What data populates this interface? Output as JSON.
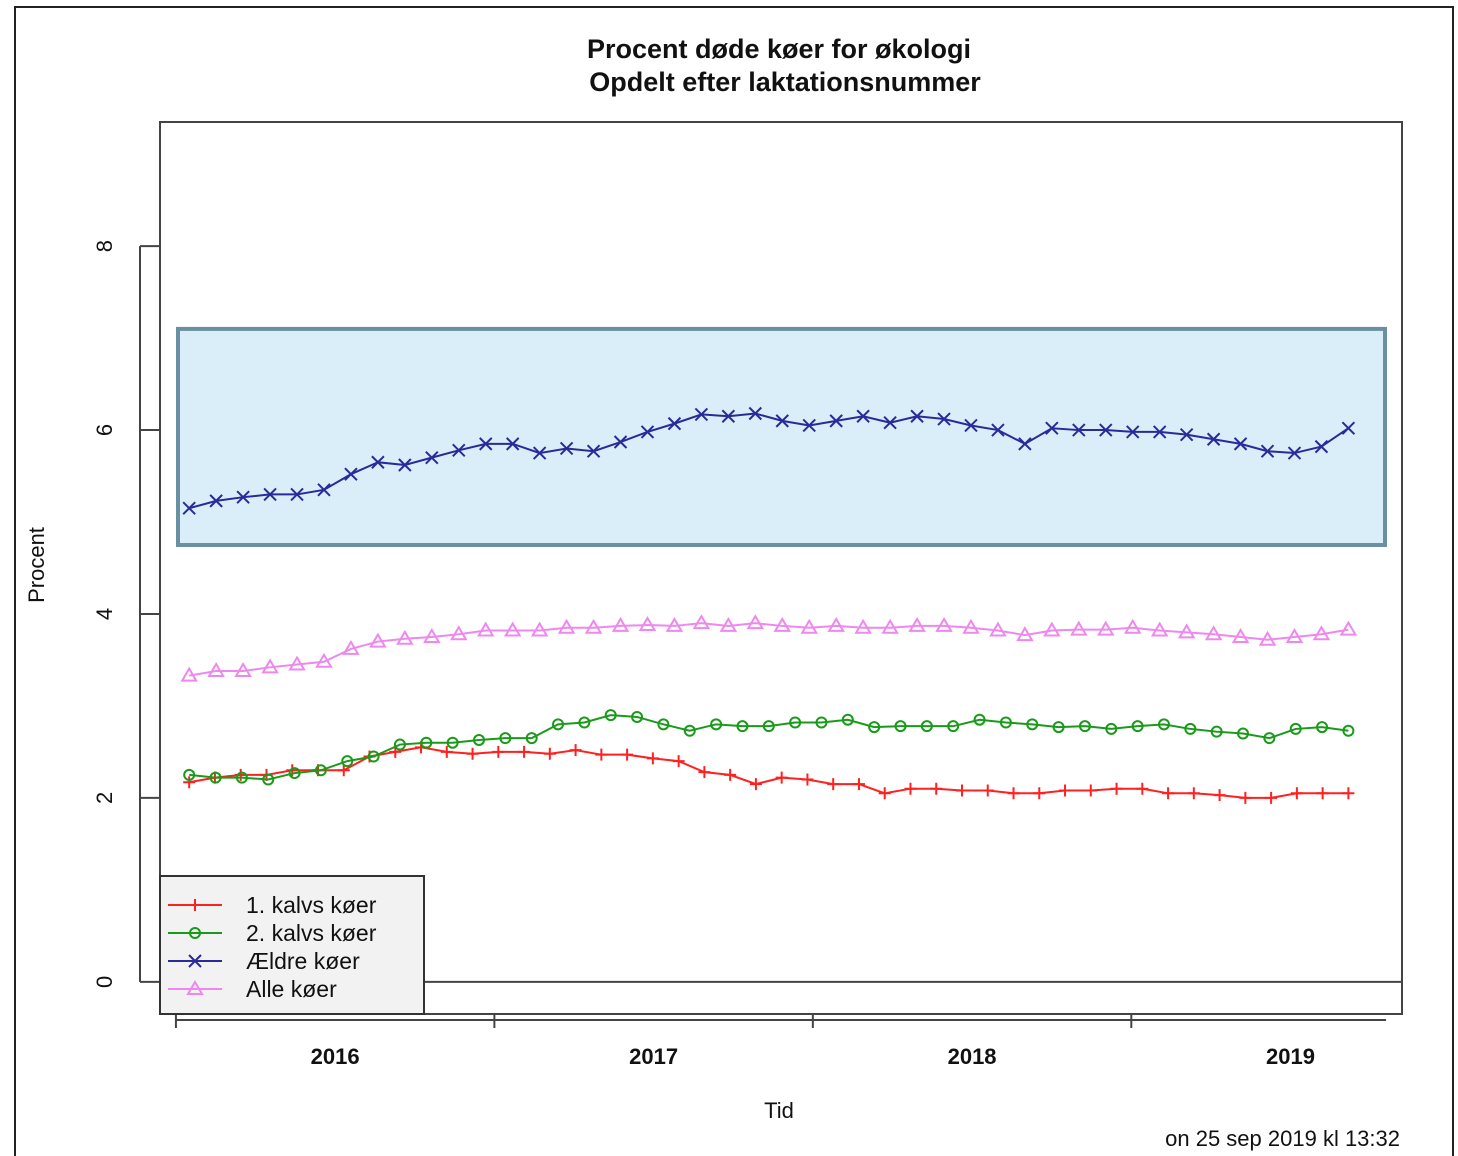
{
  "chart_data": {
    "type": "line",
    "title": "Procent døde køer for økologi",
    "subtitle": "Opdelt efter laktationsnummer",
    "xlabel": "Tid",
    "ylabel": "Procent",
    "x_ticks": [
      "2016",
      "2017",
      "2018",
      "2019"
    ],
    "y_ticks": [
      "0",
      "2",
      "4",
      "6",
      "8"
    ],
    "ylim": [
      -0.35,
      9.35
    ],
    "xlim": [
      2015.45,
      2019.35
    ],
    "x_start": "2015-07",
    "x_end": "2019-08",
    "grid": false,
    "legend_position": "bottom-left",
    "footnote": "on 25 sep 2019 kl 13:32",
    "highlight_box": {
      "y_range": [
        4.75,
        7.1
      ],
      "color": "#d9eef8",
      "border": "#6a8fa0"
    },
    "series": [
      {
        "name": "1. kalvs køer",
        "color": "#ff2020",
        "marker": "plus",
        "values": [
          2.17,
          2.22,
          2.25,
          2.25,
          2.3,
          2.3,
          2.3,
          2.45,
          2.5,
          2.55,
          2.5,
          2.48,
          2.5,
          2.5,
          2.48,
          2.52,
          2.47,
          2.47,
          2.43,
          2.4,
          2.28,
          2.25,
          2.15,
          2.22,
          2.2,
          2.15,
          2.15,
          2.05,
          2.1,
          2.1,
          2.08,
          2.08,
          2.05,
          2.05,
          2.08,
          2.08,
          2.1,
          2.1,
          2.05,
          2.05,
          2.03,
          2.0,
          2.0,
          2.05,
          2.05,
          2.05
        ]
      },
      {
        "name": "2. kalvs køer",
        "color": "#1a9a1a",
        "marker": "circle",
        "values": [
          2.25,
          2.22,
          2.22,
          2.2,
          2.27,
          2.3,
          2.4,
          2.45,
          2.58,
          2.6,
          2.6,
          2.63,
          2.65,
          2.65,
          2.8,
          2.82,
          2.9,
          2.88,
          2.8,
          2.73,
          2.8,
          2.78,
          2.78,
          2.82,
          2.82,
          2.85,
          2.77,
          2.78,
          2.78,
          2.78,
          2.85,
          2.82,
          2.8,
          2.77,
          2.78,
          2.75,
          2.78,
          2.8,
          2.75,
          2.72,
          2.7,
          2.65,
          2.75,
          2.77,
          2.73
        ]
      },
      {
        "name": "Ældre køer",
        "color": "#2a2a9a",
        "marker": "x",
        "values": [
          5.15,
          5.23,
          5.27,
          5.3,
          5.3,
          5.35,
          5.52,
          5.65,
          5.62,
          5.7,
          5.78,
          5.85,
          5.85,
          5.75,
          5.8,
          5.77,
          5.87,
          5.98,
          6.07,
          6.17,
          6.15,
          6.18,
          6.1,
          6.05,
          6.1,
          6.15,
          6.08,
          6.15,
          6.12,
          6.05,
          6.0,
          5.85,
          6.02,
          6.0,
          6.0,
          5.98,
          5.98,
          5.95,
          5.9,
          5.85,
          5.77,
          5.75,
          5.82,
          6.02
        ]
      },
      {
        "name": "Alle køer",
        "color": "#ee88ee",
        "marker": "triangle",
        "values": [
          3.33,
          3.38,
          3.38,
          3.42,
          3.45,
          3.48,
          3.62,
          3.7,
          3.73,
          3.75,
          3.78,
          3.82,
          3.82,
          3.82,
          3.85,
          3.85,
          3.87,
          3.88,
          3.87,
          3.9,
          3.87,
          3.9,
          3.87,
          3.85,
          3.87,
          3.85,
          3.85,
          3.87,
          3.87,
          3.85,
          3.82,
          3.77,
          3.82,
          3.83,
          3.83,
          3.85,
          3.82,
          3.8,
          3.78,
          3.75,
          3.72,
          3.75,
          3.78,
          3.83
        ]
      }
    ]
  }
}
